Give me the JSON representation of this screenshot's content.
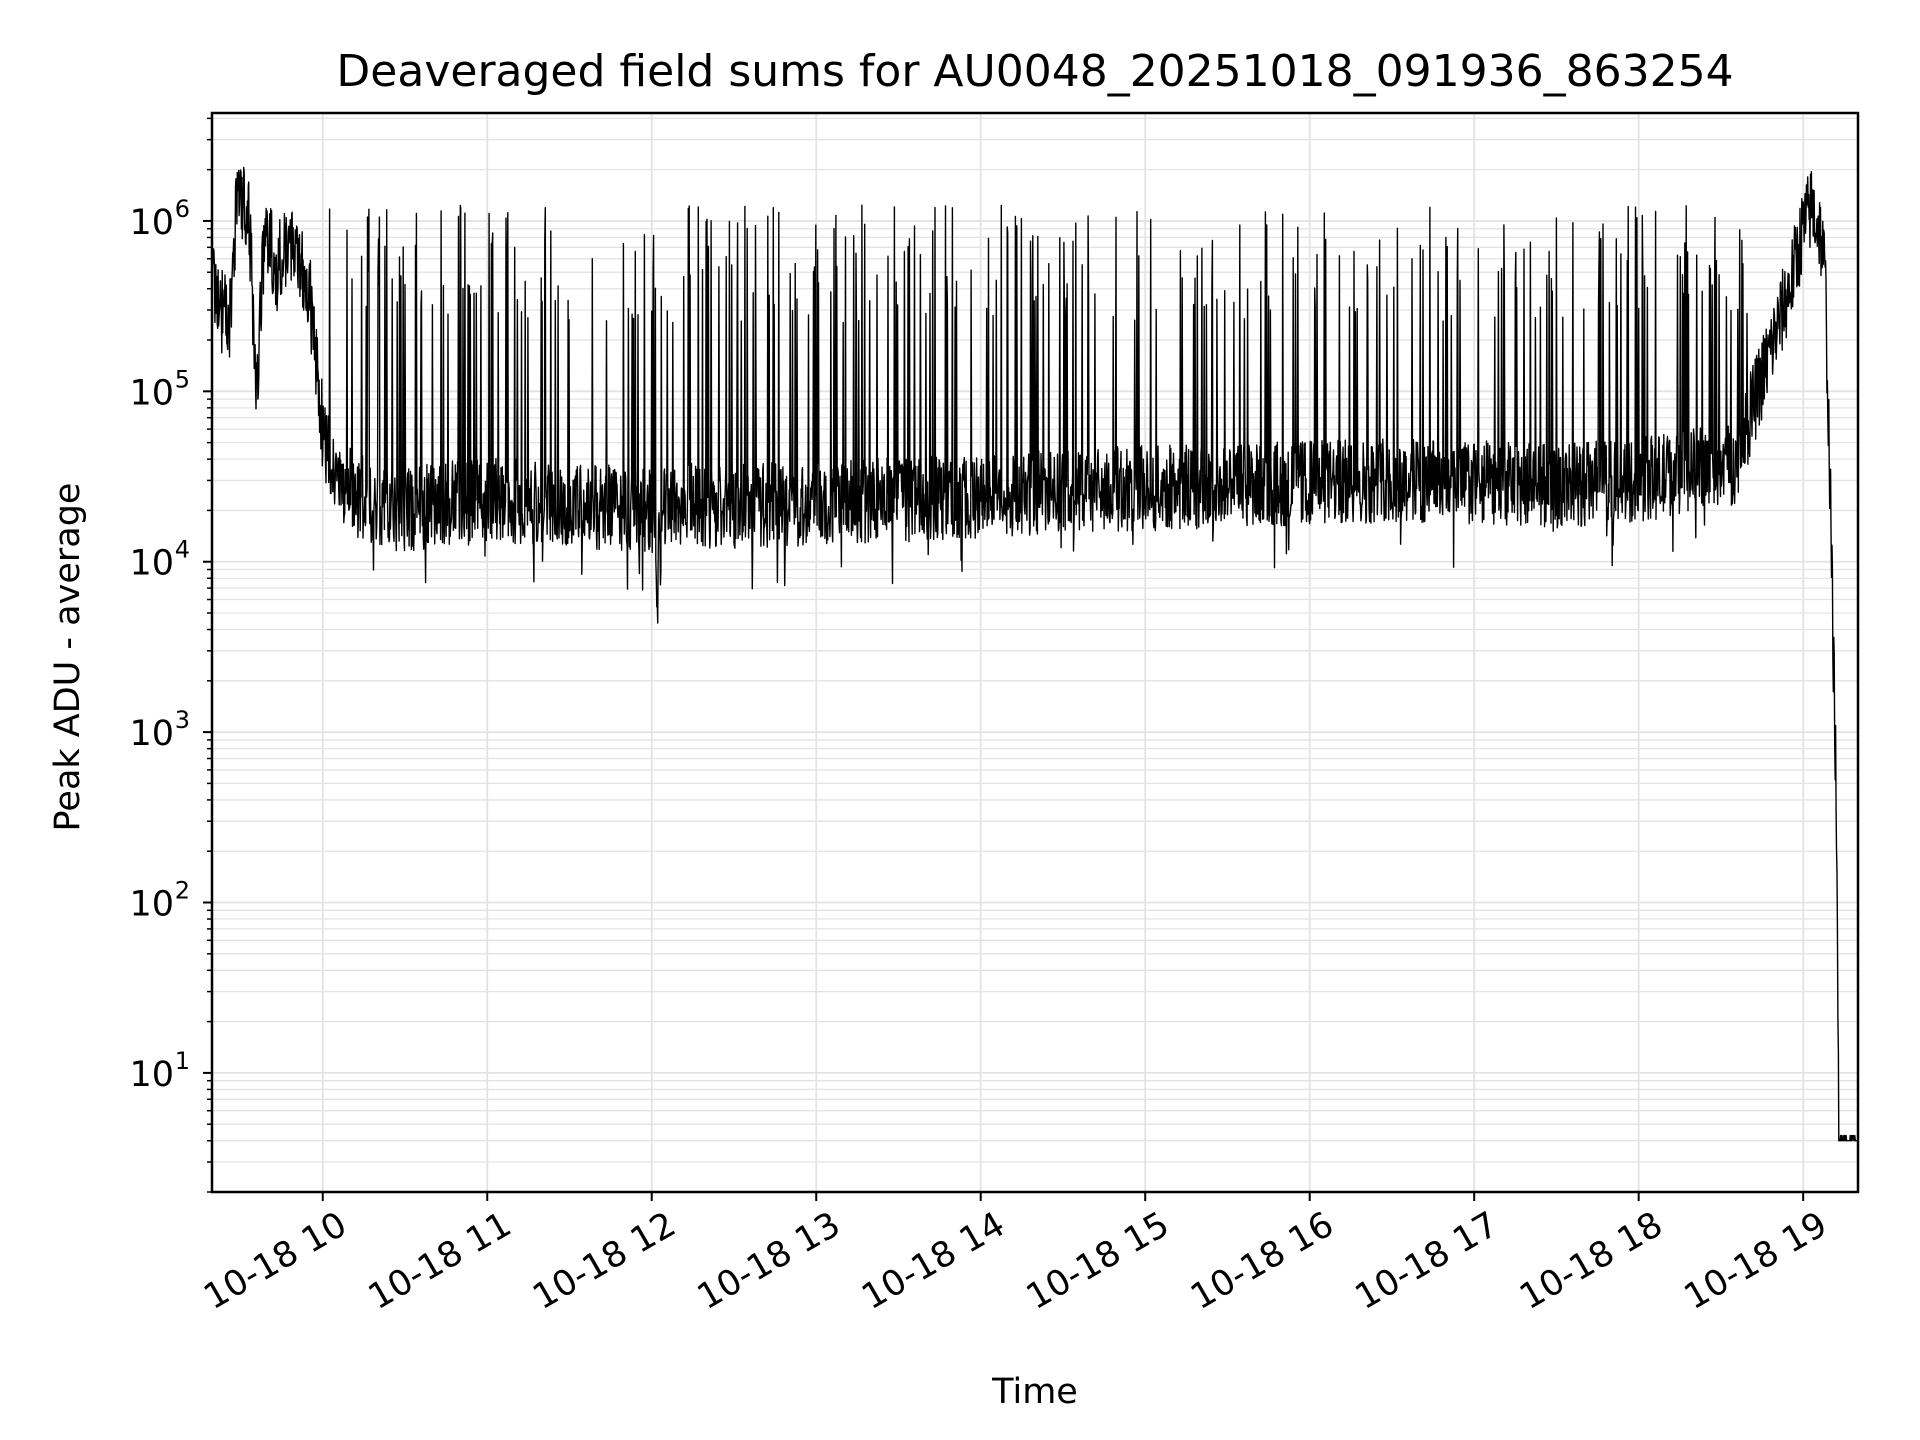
{
  "chart_data": {
    "type": "line",
    "title": "Deaveraged field sums for AU0048_20251018_091936_863254",
    "xlabel": "Time",
    "ylabel": "Peak ADU - average",
    "yscale": "log",
    "grid": true,
    "x_ticks": [
      "10-18 10",
      "10-18 11",
      "10-18 12",
      "10-18 13",
      "10-18 14",
      "10-18 15",
      "10-18 16",
      "10-18 17",
      "10-18 18",
      "10-18 19"
    ],
    "y_ticks": [
      {
        "base": "10",
        "exp": "1"
      },
      {
        "base": "10",
        "exp": "2"
      },
      {
        "base": "10",
        "exp": "3"
      },
      {
        "base": "10",
        "exp": "4"
      },
      {
        "base": "10",
        "exp": "5"
      },
      {
        "base": "10",
        "exp": "6"
      }
    ],
    "xlim": [
      "2025-10-18 09:19:36",
      "2025-10-18 19:20:00"
    ],
    "ylim": [
      2,
      4300000
    ],
    "line_color": "#000000",
    "series": [
      {
        "x": [
          "2025-10-18 09:20",
          "2025-10-18 09:23",
          "2025-10-18 09:26",
          "2025-10-18 09:29",
          "2025-10-18 09:33",
          "2025-10-18 09:36",
          "2025-10-18 09:38",
          "2025-10-18 09:40",
          "2025-10-18 09:43",
          "2025-10-18 09:46",
          "2025-10-18 09:50",
          "2025-10-18 09:55",
          "2025-10-18 10:00",
          "2025-10-18 10:05",
          "2025-10-18 10:12",
          "2025-10-18 10:20",
          "2025-10-18 10:30",
          "2025-10-18 10:45",
          "2025-10-18 11:00",
          "2025-10-18 11:20",
          "2025-10-18 11:40",
          "2025-10-18 12:00",
          "2025-10-18 12:02",
          "2025-10-18 12:05",
          "2025-10-18 12:30",
          "2025-10-18 13:00",
          "2025-10-18 13:30",
          "2025-10-18 14:00",
          "2025-10-18 14:30",
          "2025-10-18 15:00",
          "2025-10-18 15:30",
          "2025-10-18 16:00",
          "2025-10-18 16:30",
          "2025-10-18 17:00",
          "2025-10-18 17:30",
          "2025-10-18 18:00",
          "2025-10-18 18:20",
          "2025-10-18 18:35",
          "2025-10-18 18:45",
          "2025-10-18 18:55",
          "2025-10-18 19:00",
          "2025-10-18 19:03",
          "2025-10-18 19:06",
          "2025-10-18 19:08",
          "2025-10-18 19:10",
          "2025-10-18 19:11",
          "2025-10-18 19:12",
          "2025-10-18 19:13",
          "2025-10-18 19:20"
        ],
        "y": [
          400000,
          300000,
          250000,
          1500000,
          1200000,
          80000,
          600000,
          800000,
          500000,
          700000,
          800000,
          400000,
          60000,
          30000,
          25000,
          22000,
          20000,
          22000,
          23000,
          22000,
          21000,
          20000,
          9000,
          22000,
          21000,
          22000,
          23000,
          24000,
          26000,
          27000,
          28000,
          29000,
          30000,
          29000,
          28000,
          30000,
          35000,
          38000,
          120000,
          400000,
          900000,
          1200000,
          900000,
          500000,
          20000,
          3000,
          500,
          4,
          4
        ]
      }
    ]
  }
}
